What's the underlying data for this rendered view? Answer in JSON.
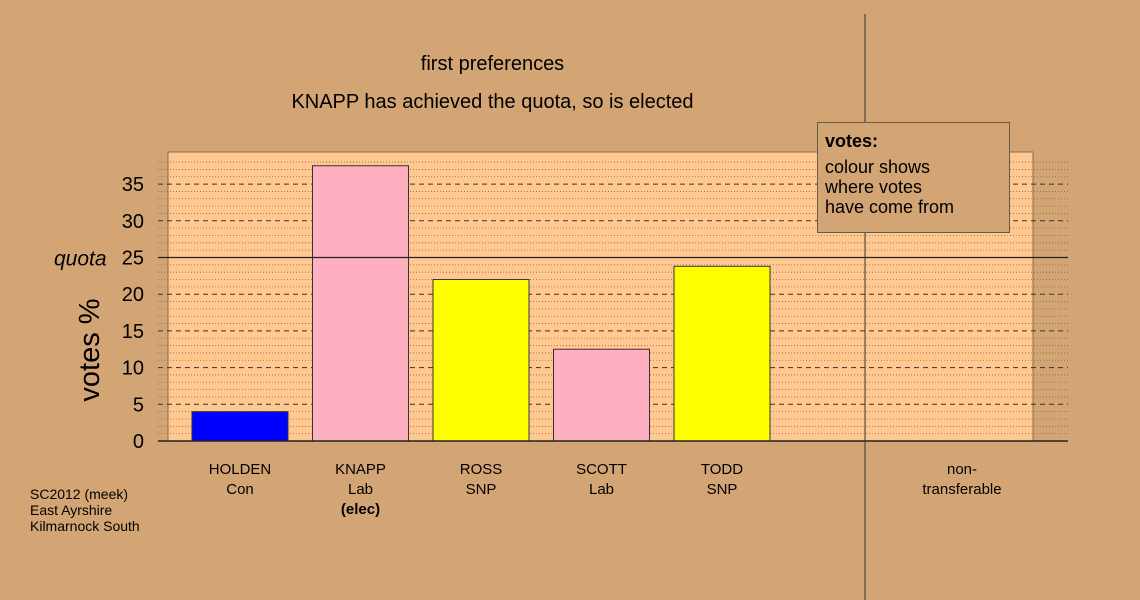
{
  "titles": {
    "line1": "first preferences",
    "line2": "KNAPP has achieved the quota, so is elected"
  },
  "source": [
    "SC2012 (meek)",
    "East Ayrshire",
    "Kilmarnock South"
  ],
  "legend": {
    "title": "votes:",
    "lines": [
      "colour shows",
      "where votes",
      "have come from"
    ]
  },
  "colors": {
    "background": "#d4a574",
    "plot_background": "#ffc890",
    "Con": "#0000ff",
    "Lab": "#ffb0c0",
    "SNP": "#ffff00"
  },
  "chart_data": {
    "type": "bar",
    "ylabel": "votes %",
    "ylim": [
      0,
      39
    ],
    "yticks": [
      0,
      5,
      10,
      15,
      20,
      25,
      30,
      35
    ],
    "quota": 25,
    "quota_label": "quota",
    "bars": [
      {
        "candidate": "HOLDEN",
        "party": "Con",
        "value": 4.0,
        "color": "#0000ff",
        "note": ""
      },
      {
        "candidate": "KNAPP",
        "party": "Lab",
        "value": 37.5,
        "color": "#ffb0c0",
        "note": "(elec)"
      },
      {
        "candidate": "ROSS",
        "party": "SNP",
        "value": 22.0,
        "color": "#ffff00",
        "note": ""
      },
      {
        "candidate": "SCOTT",
        "party": "Lab",
        "value": 12.5,
        "color": "#ffb0c0",
        "note": ""
      },
      {
        "candidate": "TODD",
        "party": "SNP",
        "value": 23.8,
        "color": "#ffff00",
        "note": ""
      }
    ],
    "non_transferable": {
      "label": "non-\ntransferable",
      "value": 0
    }
  }
}
